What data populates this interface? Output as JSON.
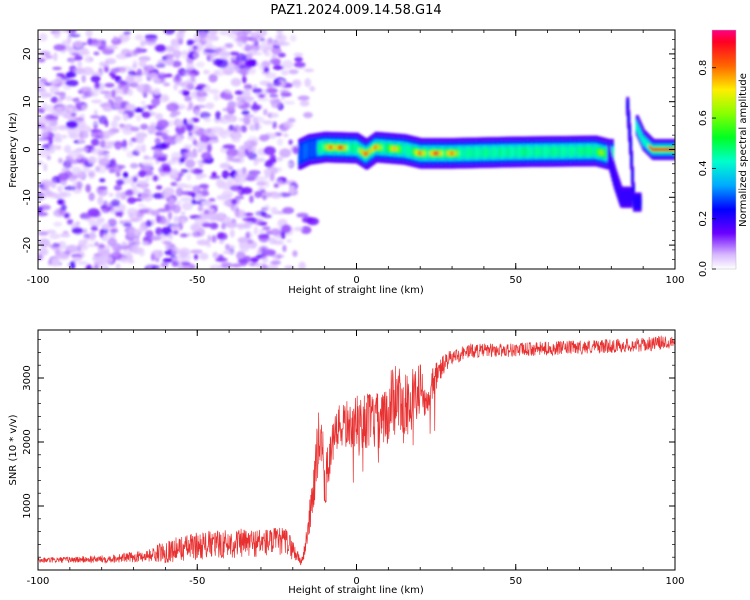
{
  "title": "PAZ1.2024.009.14.58.G14",
  "chart_data": [
    {
      "type": "heatmap",
      "xlabel": "Height of straight line (km)",
      "ylabel": "Frequency (Hz)",
      "xlim": [
        -100,
        100
      ],
      "ylim": [
        -25,
        25
      ],
      "x_ticks": [
        "-100",
        "-50",
        "0",
        "50",
        "100"
      ],
      "y_ticks": [
        "-20",
        "-10",
        "0",
        "10",
        "20"
      ],
      "colorbar": {
        "label": "Normalized spectral amplitude",
        "range": [
          0.0,
          0.95
        ],
        "ticks": [
          "0.0",
          "0.2",
          "0.4",
          "0.6",
          "0.8"
        ],
        "colormap": "gist_rainbow_r",
        "placement": "right"
      },
      "regions": [
        {
          "x_range": [
            -100,
            -18
          ],
          "description": "noise",
          "amplitude": [
            0.05,
            0.3
          ]
        },
        {
          "x_range": [
            -18,
            80
          ],
          "center_frequency_hz": [
            {
              "x": -18,
              "f": -1
            },
            {
              "x": -15,
              "f": 0
            },
            {
              "x": -10,
              "f": 0.5
            },
            {
              "x": 0,
              "f": 0.3
            },
            {
              "x": 3,
              "f": -1
            },
            {
              "x": 6,
              "f": 0.5
            },
            {
              "x": 15,
              "f": 0
            },
            {
              "x": 20,
              "f": -0.8
            },
            {
              "x": 30,
              "f": -0.8
            },
            {
              "x": 50,
              "f": -0.5
            },
            {
              "x": 75,
              "f": -0.3
            },
            {
              "x": 79,
              "f": -1
            }
          ],
          "amplitude": 0.5
        },
        {
          "x_range": [
            79,
            86
          ],
          "center_frequency_hz": [
            {
              "x": 79,
              "f": -1
            },
            {
              "x": 81,
              "f": -6
            },
            {
              "x": 83,
              "f": -10
            }
          ]
        },
        {
          "x_range": [
            85,
            89
          ],
          "center_frequency_hz": [
            {
              "x": 85,
              "f": 9
            },
            {
              "x": 86,
              "f": 0
            },
            {
              "x": 87,
              "f": -11
            }
          ]
        },
        {
          "x_range": [
            88,
            100
          ],
          "center_frequency_hz": [
            {
              "x": 88,
              "f": 5
            },
            {
              "x": 90,
              "f": 2
            },
            {
              "x": 93,
              "f": 0
            },
            {
              "x": 100,
              "f": 0
            }
          ],
          "amplitude": 0.9
        }
      ]
    },
    {
      "type": "line",
      "xlabel": "Height of straight line (km)",
      "ylabel": "SNR (10 * v/v)",
      "xlim": [
        -100,
        100
      ],
      "ylim": [
        0,
        3750
      ],
      "x_ticks": [
        "-100",
        "-50",
        "0",
        "50",
        "100"
      ],
      "y_ticks": [
        "1000",
        "2000",
        "3000"
      ],
      "series": [
        {
          "color": "#e83030",
          "x": [
            -100,
            -90,
            -80,
            -70,
            -65,
            -60,
            -50,
            -40,
            -30,
            -22,
            -17,
            -15,
            -13,
            -11,
            -10,
            -8,
            -5,
            0,
            5,
            8,
            12,
            15,
            18,
            20,
            22,
            24,
            26,
            28,
            30,
            35,
            40,
            50,
            60,
            70,
            80,
            90,
            100
          ],
          "y": [
            150,
            160,
            170,
            200,
            230,
            290,
            380,
            410,
            430,
            450,
            120,
            700,
            1500,
            2300,
            1300,
            1900,
            2250,
            2300,
            2350,
            2250,
            2750,
            2550,
            2700,
            2850,
            2500,
            2950,
            3100,
            3250,
            3320,
            3420,
            3430,
            3440,
            3460,
            3480,
            3500,
            3520,
            3580
          ],
          "noise_amplitude": [
            40,
            50,
            60,
            80,
            100,
            180,
            220,
            230,
            230,
            220,
            80,
            250,
            500,
            550,
            400,
            350,
            380,
            420,
            450,
            500,
            550,
            500,
            480,
            400,
            300,
            250,
            200,
            150,
            120,
            120,
            110,
            110,
            110,
            110,
            110,
            110,
            110
          ]
        }
      ]
    }
  ]
}
